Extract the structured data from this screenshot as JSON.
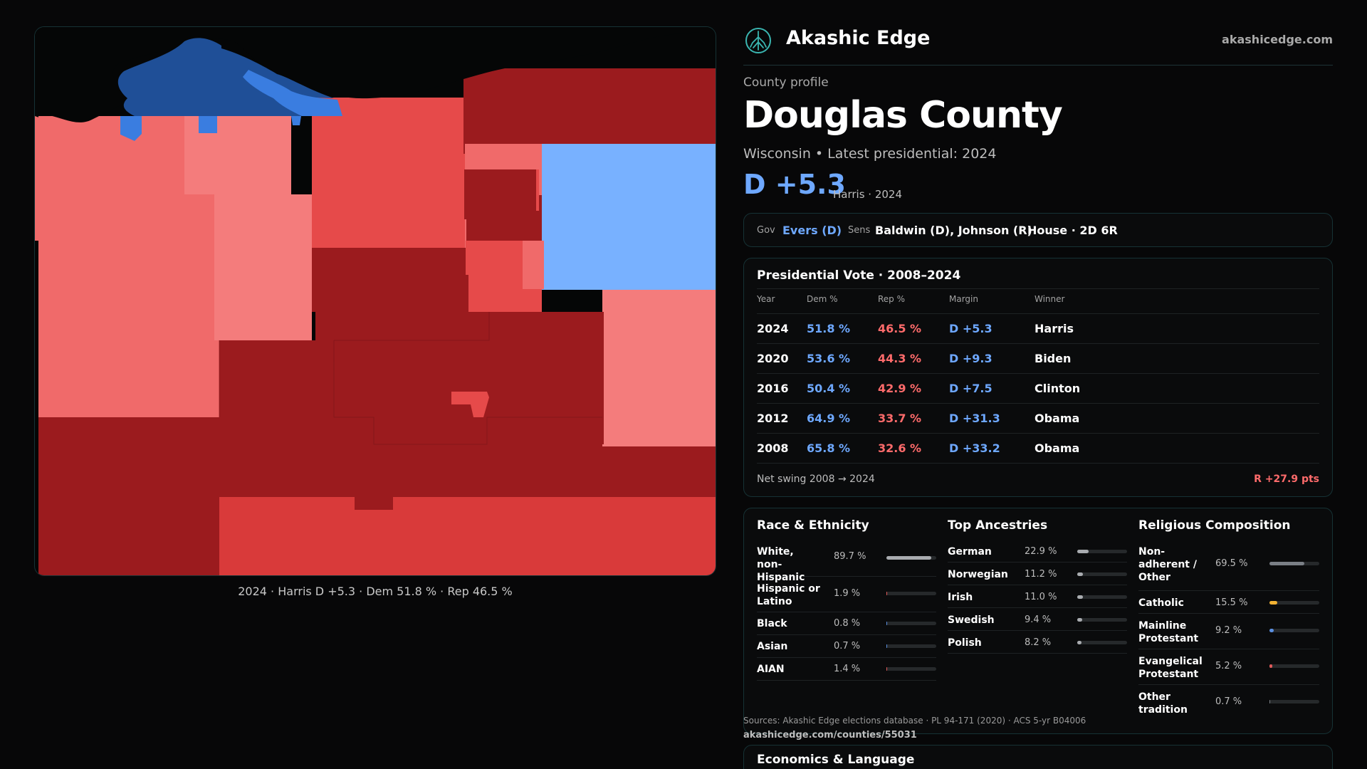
{
  "brand": {
    "name": "Akashic Edge",
    "url": "akashicedge.com",
    "logo_icon": "tree-icon"
  },
  "county": {
    "kicker": "County profile",
    "name": "Douglas County",
    "subtitle": "Wisconsin • Latest presidential: 2024",
    "margin": "D +5.3",
    "margin_note": "Harris · 2024"
  },
  "officials": {
    "gov_label": "Gov",
    "gov_value": "Evers (D)",
    "sens_label": "Sens",
    "sens_value": "Baldwin (D), Johnson (R)",
    "house_value": "House · 2D 6R"
  },
  "map": {
    "caption": "2024 · Harris D +5.3 · Dem 51.8 % · Rep 46.5 %",
    "colors": {
      "dark_blue": "#1f4f97",
      "blue": "#3a7de0",
      "light_blue": "#78b1ff",
      "dark_red": "#9b1b1e",
      "red": "#d93a3a",
      "mid_red": "#e64a4a",
      "light_red": "#f06a6a",
      "pale_red": "#f47c7c"
    }
  },
  "presidential": {
    "title": "Presidential Vote · 2008–2024",
    "headers": {
      "year": "Year",
      "dem": "Dem %",
      "rep": "Rep %",
      "margin": "Margin",
      "winner": "Winner"
    },
    "rows": [
      {
        "year": "2024",
        "dem": "51.8 %",
        "rep": "46.5 %",
        "margin": "D +5.3",
        "winner": "Harris"
      },
      {
        "year": "2020",
        "dem": "53.6 %",
        "rep": "44.3 %",
        "margin": "D +9.3",
        "winner": "Biden"
      },
      {
        "year": "2016",
        "dem": "50.4 %",
        "rep": "42.9 %",
        "margin": "D +7.5",
        "winner": "Clinton"
      },
      {
        "year": "2012",
        "dem": "64.9 %",
        "rep": "33.7 %",
        "margin": "D +31.3",
        "winner": "Obama"
      },
      {
        "year": "2008",
        "dem": "65.8 %",
        "rep": "32.6 %",
        "margin": "D +33.2",
        "winner": "Obama"
      }
    ],
    "swing_label": "Net swing 2008 → 2024",
    "swing_value": "R +27.9 pts"
  },
  "race": {
    "title": "Race & Ethnicity",
    "items": [
      {
        "label": "White, non-Hispanic",
        "pct": "89.7 %",
        "value": 89.7
      },
      {
        "label": "Hispanic or Latino",
        "pct": "1.9 %",
        "value": 1.9
      },
      {
        "label": "Black",
        "pct": "0.8 %",
        "value": 0.8
      },
      {
        "label": "Asian",
        "pct": "0.7 %",
        "value": 0.7
      },
      {
        "label": "AIAN",
        "pct": "1.4 %",
        "value": 1.4
      }
    ]
  },
  "ancestry": {
    "title": "Top Ancestries",
    "items": [
      {
        "label": "German",
        "pct": "22.9 %",
        "value": 22.9
      },
      {
        "label": "Norwegian",
        "pct": "11.2 %",
        "value": 11.2
      },
      {
        "label": "Irish",
        "pct": "11.0 %",
        "value": 11.0
      },
      {
        "label": "Swedish",
        "pct": "9.4 %",
        "value": 9.4
      },
      {
        "label": "Polish",
        "pct": "8.2 %",
        "value": 8.2
      }
    ]
  },
  "religion": {
    "title": "Religious Composition",
    "items": [
      {
        "label": "Non-adherent / Other",
        "pct": "69.5 %",
        "value": 69.5,
        "color": "#7a7f86"
      },
      {
        "label": "Catholic",
        "pct": "15.5 %",
        "value": 15.5,
        "color": "#f2b233"
      },
      {
        "label": "Mainline Protestant",
        "pct": "9.2 %",
        "value": 9.2,
        "color": "#5a8fe0"
      },
      {
        "label": "Evangelical Protestant",
        "pct": "5.2 %",
        "value": 5.2,
        "color": "#e05a5a"
      },
      {
        "label": "Other tradition",
        "pct": "0.7 %",
        "value": 0.7,
        "color": "#7a7f86"
      }
    ]
  },
  "sources": {
    "text": "Sources: Akashic Edge elections database · PL 94-171 (2020) · ACS 5-yr B04006",
    "link": "akashicedge.com/counties/55031"
  },
  "economics": {
    "title": "Economics & Language"
  }
}
